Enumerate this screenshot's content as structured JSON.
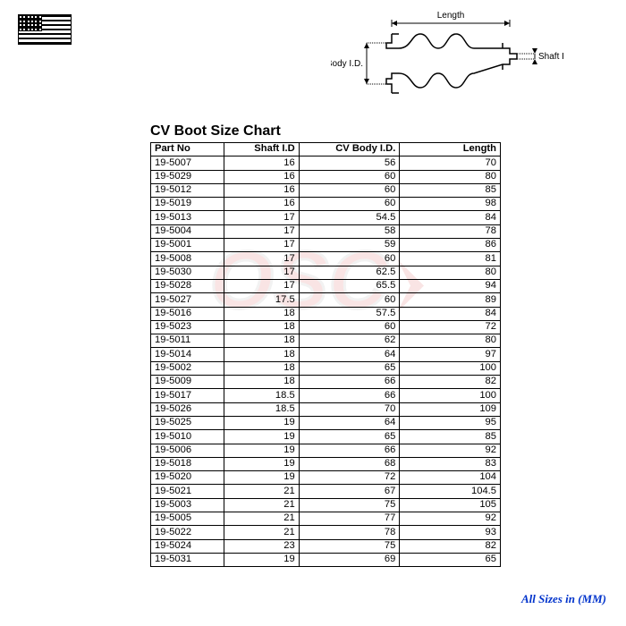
{
  "title": "CV Boot Size Chart",
  "diagram_labels": {
    "length": "Length",
    "cv_body": "CV Body I.D.",
    "shaft": "Shaft I.D."
  },
  "footer_note": "All Sizes in (MM)",
  "columns": [
    {
      "label": "Part No",
      "class": "col-part"
    },
    {
      "label": "Shaft I.D",
      "class": "col-shaft"
    },
    {
      "label": "CV Body I.D.",
      "class": "col-body"
    },
    {
      "label": "Length",
      "class": "col-length"
    }
  ],
  "rows": [
    [
      "19-5007",
      "16",
      "56",
      "70"
    ],
    [
      "19-5029",
      "16",
      "60",
      "80"
    ],
    [
      "19-5012",
      "16",
      "60",
      "85"
    ],
    [
      "19-5019",
      "16",
      "60",
      "98"
    ],
    [
      "19-5013",
      "17",
      "54.5",
      "84"
    ],
    [
      "19-5004",
      "17",
      "58",
      "78"
    ],
    [
      "19-5001",
      "17",
      "59",
      "86"
    ],
    [
      "19-5008",
      "17",
      "60",
      "81"
    ],
    [
      "19-5030",
      "17",
      "62.5",
      "80"
    ],
    [
      "19-5028",
      "17",
      "65.5",
      "94"
    ],
    [
      "19-5027",
      "17.5",
      "60",
      "89"
    ],
    [
      "19-5016",
      "18",
      "57.5",
      "84"
    ],
    [
      "19-5023",
      "18",
      "60",
      "72"
    ],
    [
      "19-5011",
      "18",
      "62",
      "80"
    ],
    [
      "19-5014",
      "18",
      "64",
      "97"
    ],
    [
      "19-5002",
      "18",
      "65",
      "100"
    ],
    [
      "19-5009",
      "18",
      "66",
      "82"
    ],
    [
      "19-5017",
      "18.5",
      "66",
      "100"
    ],
    [
      "19-5026",
      "18.5",
      "70",
      "109"
    ],
    [
      "19-5025",
      "19",
      "64",
      "95"
    ],
    [
      "19-5010",
      "19",
      "65",
      "85"
    ],
    [
      "19-5006",
      "19",
      "66",
      "92"
    ],
    [
      "19-5018",
      "19",
      "68",
      "83"
    ],
    [
      "19-5020",
      "19",
      "72",
      "104"
    ],
    [
      "19-5021",
      "21",
      "67",
      "104.5"
    ],
    [
      "19-5003",
      "21",
      "75",
      "105"
    ],
    [
      "19-5005",
      "21",
      "77",
      "92"
    ],
    [
      "19-5022",
      "21",
      "78",
      "93"
    ],
    [
      "19-5024",
      "23",
      "75",
      "82"
    ],
    [
      "19-5031",
      "19",
      "69",
      "65"
    ]
  ],
  "colors": {
    "text": "#000000",
    "border": "#000000",
    "background": "#ffffff",
    "footer_text": "#0033cc",
    "watermark_red": "#cc0000",
    "watermark_gray": "#888888"
  }
}
